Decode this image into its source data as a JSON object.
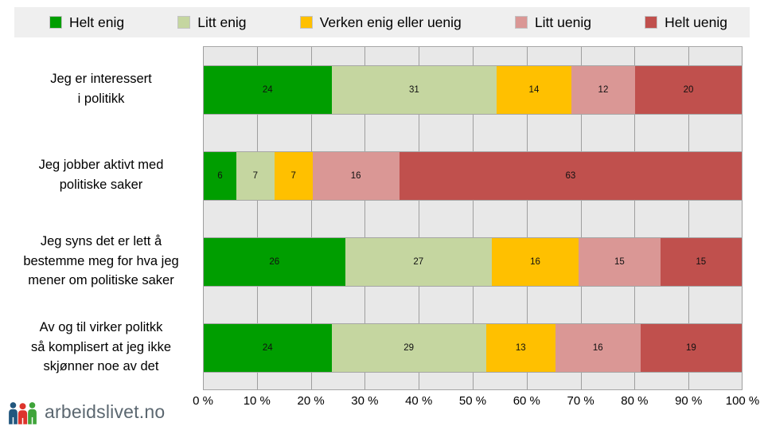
{
  "branding": {
    "site": "arbeidslivet.no",
    "logo_colors": {
      "person1": "#22577E",
      "person2": "#DD342C",
      "person3": "#3FA43A"
    }
  },
  "legend": {
    "items": [
      {
        "label": "Helt enig",
        "color": "#009E00"
      },
      {
        "label": "Litt enig",
        "color": "#C5D6A0"
      },
      {
        "label": "Verken enig eller uenig",
        "color": "#FFC000"
      },
      {
        "label": "Litt uenig",
        "color": "#DA9795"
      },
      {
        "label": "Helt uenig",
        "color": "#C0504D"
      }
    ],
    "background": "#EFEFEF"
  },
  "chart_data": {
    "type": "bar",
    "orientation": "horizontal",
    "stacked": true,
    "stacked_unit": "percent",
    "grid": true,
    "legend_position": "top",
    "plot_background": "#E8E8E8",
    "gridline_color": "#9E9E9E",
    "categories": [
      [
        "Jeg er interessert",
        "i politikk"
      ],
      [
        "Jeg jobber aktivt med",
        "politiske saker"
      ],
      [
        "Jeg syns det er lett å",
        "bestemme meg for hva jeg",
        "mener om politiske saker"
      ],
      [
        "Av og til virker politkk",
        "så komplisert at jeg ikke",
        "skjønner noe av det"
      ]
    ],
    "series": [
      {
        "name": "Helt enig",
        "color": "#009E00",
        "values": [
          24,
          6,
          26,
          24
        ]
      },
      {
        "name": "Litt enig",
        "color": "#C5D6A0",
        "values": [
          31,
          7,
          27,
          29
        ]
      },
      {
        "name": "Verken enig eller uenig",
        "color": "#FFC000",
        "values": [
          14,
          7,
          16,
          13
        ]
      },
      {
        "name": "Litt uenig",
        "color": "#DA9795",
        "values": [
          12,
          16,
          15,
          16
        ]
      },
      {
        "name": "Helt uenig",
        "color": "#C0504D",
        "values": [
          20,
          63,
          15,
          19
        ]
      }
    ],
    "x_ticks": [
      "0 %",
      "10 %",
      "20 %",
      "30 %",
      "40 %",
      "50 %",
      "60 %",
      "70 %",
      "80 %",
      "90 %",
      "100 %"
    ],
    "xlim": [
      0,
      100
    ]
  }
}
